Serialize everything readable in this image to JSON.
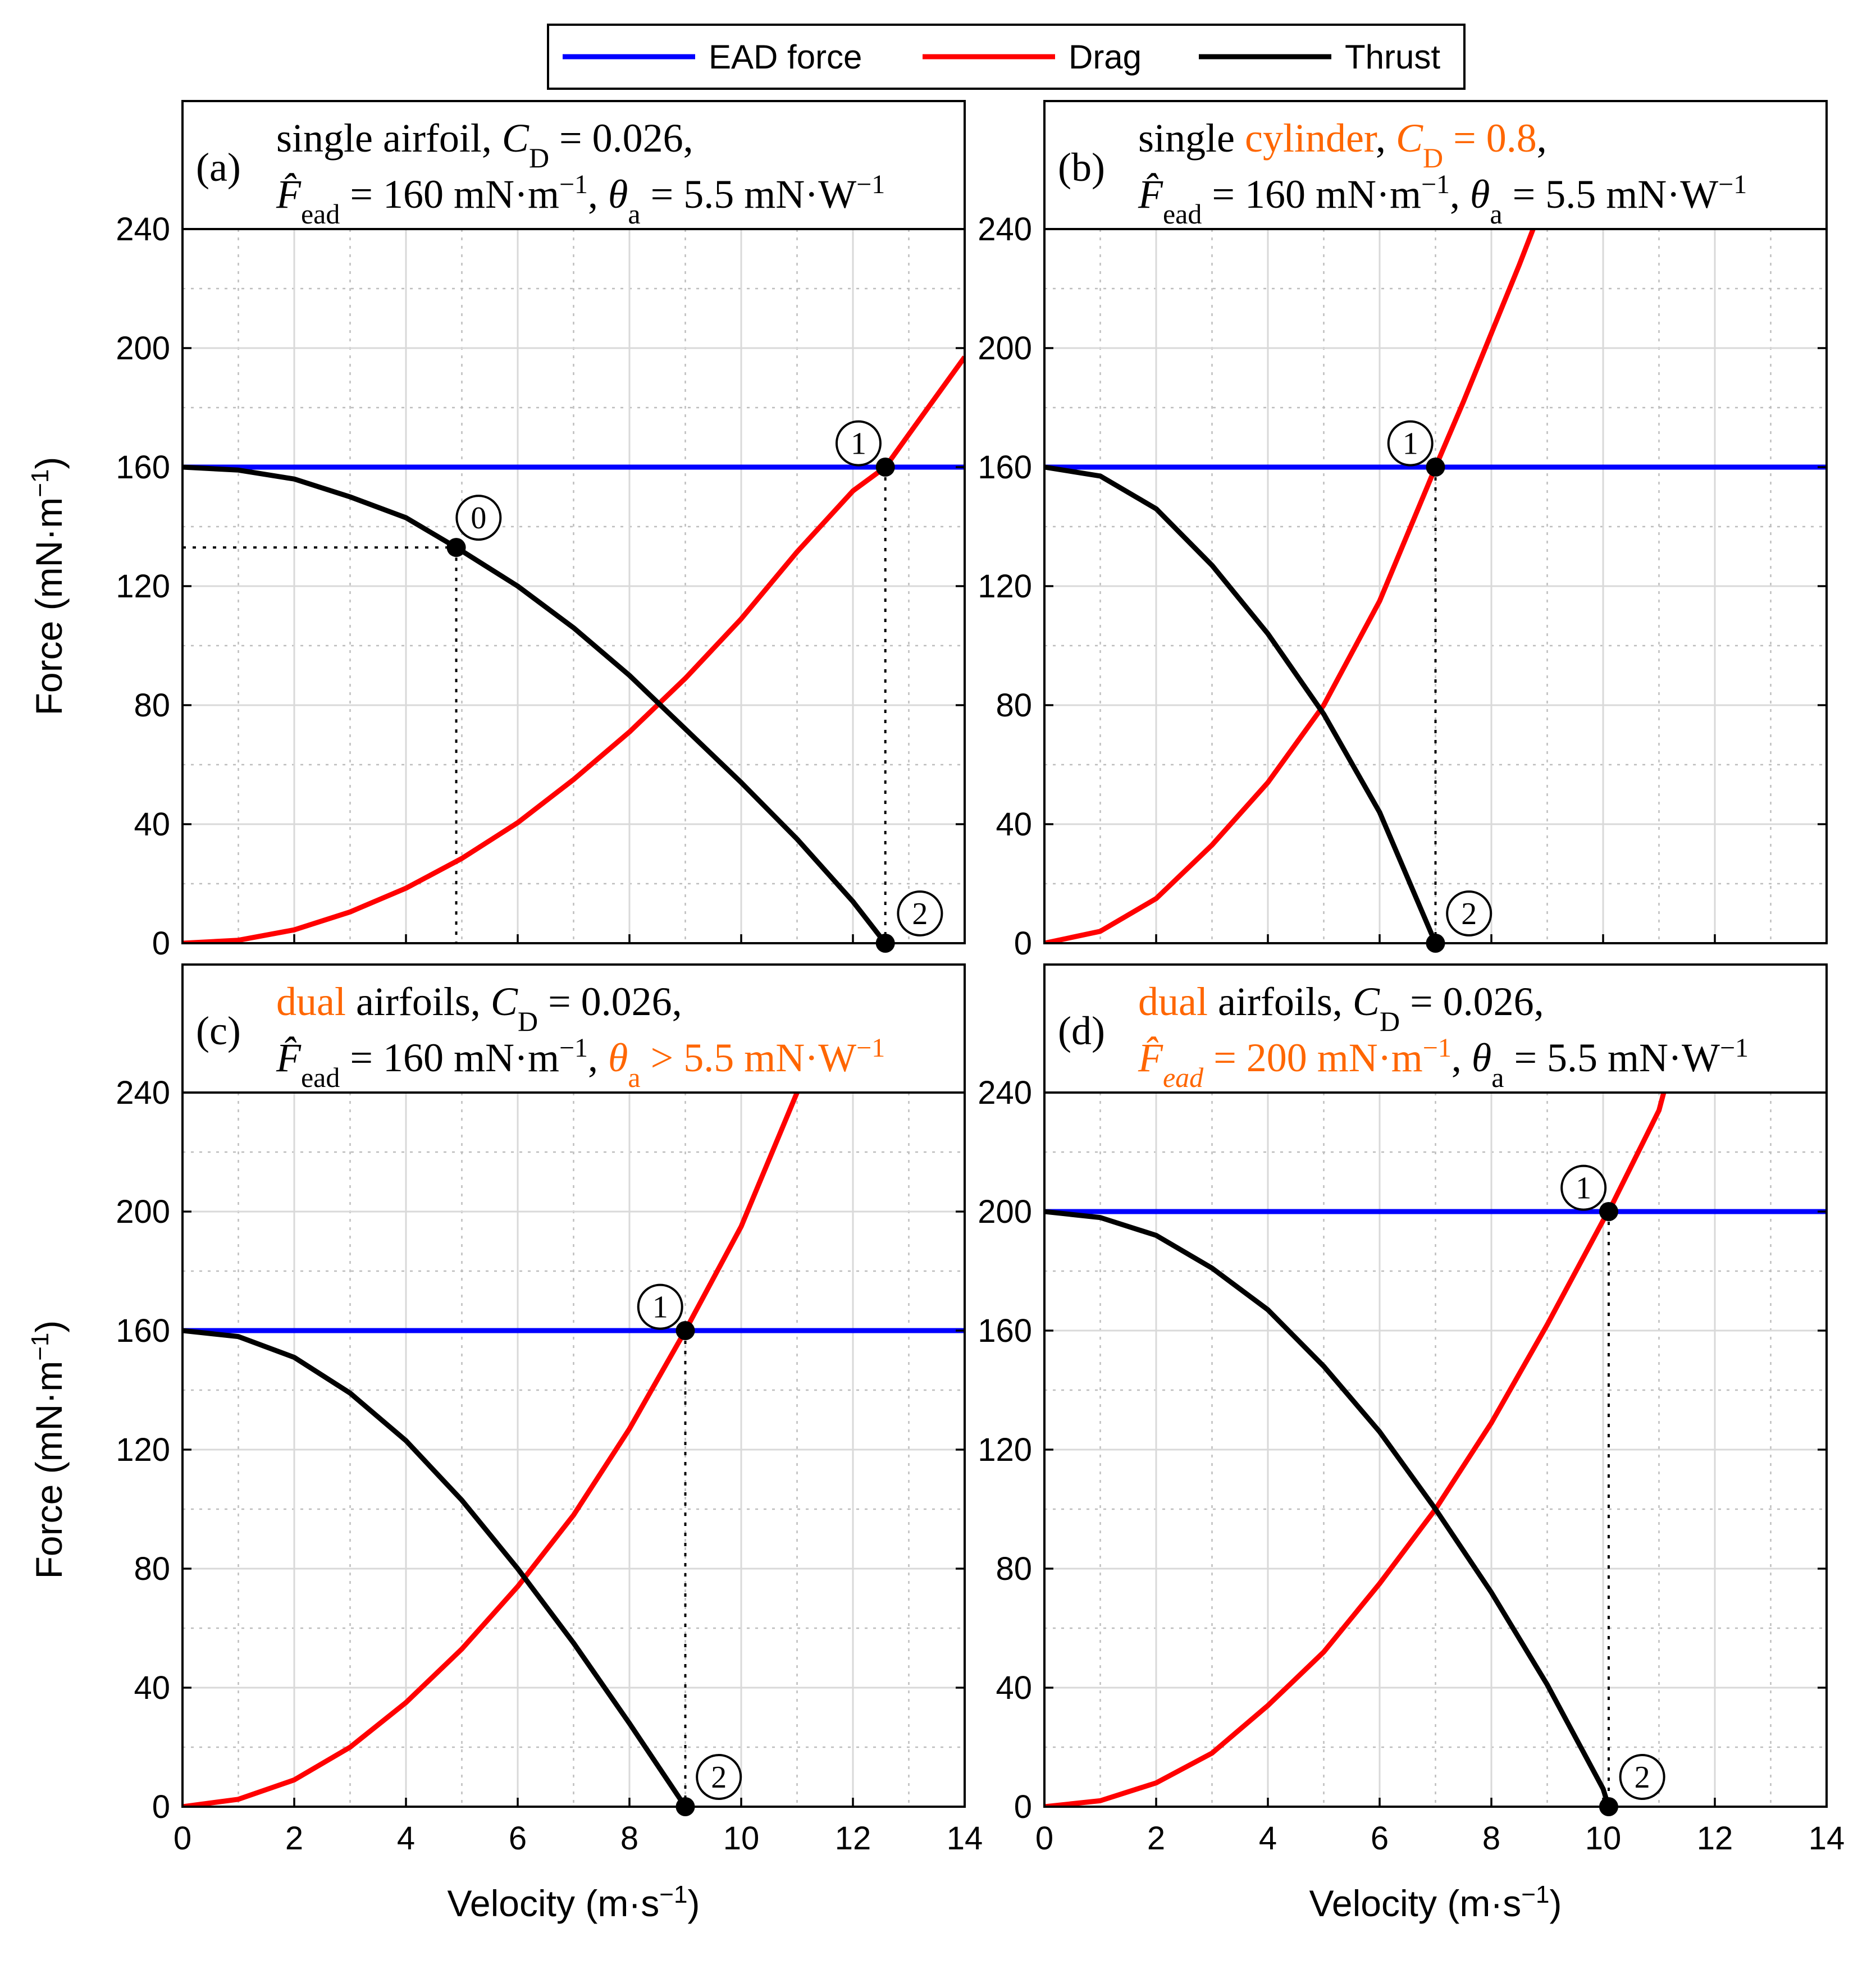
{
  "colors": {
    "ead": "#0000ff",
    "drag": "#ff0000",
    "thrust": "#000000",
    "highlight": "#ff6600"
  },
  "legend": [
    {
      "key": "ead",
      "label": "EAD force"
    },
    {
      "key": "drag",
      "label": "Drag"
    },
    {
      "key": "thrust",
      "label": "Thrust"
    }
  ],
  "axis_labels": {
    "x": {
      "main": "Velocity (m·s",
      "sup": "−1",
      "tail": ")"
    },
    "y": {
      "main": "Force (mN·m",
      "sup": "−1",
      "tail": ")"
    }
  },
  "chart_data": [
    {
      "id": "a",
      "type": "line",
      "panel_label": "(a)",
      "title_lines": [
        [
          {
            "t": "single airfoil, "
          },
          {
            "t": "C",
            "i": 1
          },
          {
            "t": "D",
            "sub": 1
          },
          {
            "t": " = 0.026,"
          }
        ],
        [
          {
            "t": "F̂",
            "i": 1
          },
          {
            "t": "ead",
            "sub": 1
          },
          {
            "t": " = 160 mN·m"
          },
          {
            "t": "−1",
            "sup": 1
          },
          {
            "t": ", "
          },
          {
            "t": "θ",
            "i": 1
          },
          {
            "t": "a",
            "sub": 1
          },
          {
            "t": " = 5.5 mN·W"
          },
          {
            "t": "−1",
            "sup": 1
          }
        ]
      ],
      "xlim": [
        0,
        14
      ],
      "ylim": [
        0,
        240
      ],
      "xticks": [
        0,
        2,
        4,
        6,
        8,
        10,
        12,
        14
      ],
      "yticks": [
        0,
        40,
        80,
        120,
        160,
        200,
        240
      ],
      "ead_force": 160,
      "drag": {
        "x": [
          0,
          1,
          2,
          3,
          4,
          5,
          6,
          7,
          8,
          9,
          10,
          11,
          12,
          12.58,
          13,
          14
        ],
        "y": [
          0,
          1,
          4.5,
          10.5,
          18.5,
          28.5,
          40.5,
          55,
          71,
          89,
          109,
          131.5,
          152,
          160,
          171,
          197
        ]
      },
      "thrust": {
        "x": [
          0,
          1,
          2,
          3,
          4,
          4.9,
          6,
          7,
          8,
          9,
          10,
          11,
          12,
          12.58
        ],
        "y": [
          160,
          159,
          156,
          150,
          143,
          133,
          120,
          106,
          90,
          72,
          54,
          35,
          14,
          0
        ]
      },
      "points": [
        {
          "label": "0",
          "x": 4.9,
          "y": 133,
          "vguide": 1,
          "hguide": 1,
          "lx": 5.3,
          "ly": 143
        },
        {
          "label": "1",
          "x": 12.58,
          "y": 160,
          "vguide": 1,
          "lx": 12.1,
          "ly": 168
        },
        {
          "label": "2",
          "x": 12.58,
          "y": 0,
          "lx": 13.2,
          "ly": 10
        }
      ]
    },
    {
      "id": "b",
      "type": "line",
      "panel_label": "(b)",
      "title_lines": [
        [
          {
            "t": "single "
          },
          {
            "t": "cylinder",
            "c": 1
          },
          {
            "t": ", "
          },
          {
            "t": "C",
            "i": 1,
            "c": 1
          },
          {
            "t": "D",
            "sub": 1,
            "c": 1
          },
          {
            "t": " = 0.8",
            "c": 1
          },
          {
            "t": ","
          }
        ],
        [
          {
            "t": "F̂",
            "i": 1
          },
          {
            "t": "ead",
            "sub": 1
          },
          {
            "t": " = 160 mN·m"
          },
          {
            "t": "−1",
            "sup": 1
          },
          {
            "t": ", "
          },
          {
            "t": "θ",
            "i": 1
          },
          {
            "t": "a",
            "sub": 1
          },
          {
            "t": " = 5.5 mN·W"
          },
          {
            "t": "−1",
            "sup": 1
          }
        ]
      ],
      "xlim": [
        0,
        14
      ],
      "ylim": [
        0,
        240
      ],
      "xticks": [
        0,
        2,
        4,
        6,
        8,
        10,
        12,
        14
      ],
      "yticks": [
        0,
        40,
        80,
        120,
        160,
        200,
        240
      ],
      "ead_force": 160,
      "drag": {
        "x": [
          0,
          1,
          2,
          3,
          4,
          5,
          6,
          7,
          7.5,
          8,
          8.5,
          8.85
        ],
        "y": [
          0,
          4,
          15,
          33,
          54,
          80,
          115,
          160,
          182,
          205,
          228,
          245
        ]
      },
      "thrust": {
        "x": [
          0,
          1,
          2,
          3,
          4,
          5,
          6,
          7
        ],
        "y": [
          160,
          157,
          146,
          127,
          104,
          77,
          44,
          0
        ]
      },
      "points": [
        {
          "label": "1",
          "x": 7.0,
          "y": 160,
          "vguide": 1,
          "lx": 6.55,
          "ly": 168
        },
        {
          "label": "2",
          "x": 7.0,
          "y": 0,
          "lx": 7.6,
          "ly": 10
        }
      ]
    },
    {
      "id": "c",
      "type": "line",
      "panel_label": "(c)",
      "title_lines": [
        [
          {
            "t": "dual",
            "c": 1
          },
          {
            "t": " airfoils, "
          },
          {
            "t": "C",
            "i": 1
          },
          {
            "t": "D",
            "sub": 1
          },
          {
            "t": " = 0.026,"
          }
        ],
        [
          {
            "t": "F̂",
            "i": 1
          },
          {
            "t": "ead",
            "sub": 1
          },
          {
            "t": " = 160 mN·m"
          },
          {
            "t": "−1",
            "sup": 1
          },
          {
            "t": ", "
          },
          {
            "t": "θ",
            "i": 1,
            "c": 1
          },
          {
            "t": "a",
            "sub": 1,
            "c": 1
          },
          {
            "t": " > 5.5 mN·W",
            "c": 1
          },
          {
            "t": "−1",
            "sup": 1,
            "c": 1
          }
        ]
      ],
      "xlim": [
        0,
        14
      ],
      "ylim": [
        0,
        240
      ],
      "xticks": [
        0,
        2,
        4,
        6,
        8,
        10,
        12,
        14
      ],
      "yticks": [
        0,
        40,
        80,
        120,
        160,
        200,
        240
      ],
      "ead_force": 160,
      "drag": {
        "x": [
          0,
          1,
          2,
          3,
          4,
          5,
          6,
          7,
          8,
          9,
          10,
          11,
          11.05
        ],
        "y": [
          0,
          2.5,
          9,
          20,
          35,
          53,
          74,
          98,
          127,
          160,
          195,
          240,
          243
        ]
      },
      "thrust": {
        "x": [
          0,
          1,
          2,
          3,
          4,
          5,
          6,
          7,
          8,
          9
        ],
        "y": [
          160,
          158,
          151,
          139,
          123,
          103,
          80,
          55,
          28,
          0
        ]
      },
      "points": [
        {
          "label": "1",
          "x": 9.0,
          "y": 160,
          "vguide": 1,
          "lx": 8.55,
          "ly": 168
        },
        {
          "label": "2",
          "x": 9.0,
          "y": 0,
          "lx": 9.6,
          "ly": 10
        }
      ]
    },
    {
      "id": "d",
      "type": "line",
      "panel_label": "(d)",
      "title_lines": [
        [
          {
            "t": "dual",
            "c": 1
          },
          {
            "t": " airfoils, "
          },
          {
            "t": "C",
            "i": 1
          },
          {
            "t": "D",
            "sub": 1
          },
          {
            "t": " = 0.026,"
          }
        ],
        [
          {
            "t": "F̂",
            "i": 1,
            "c": 1
          },
          {
            "t": "ead",
            "sub": 1,
            "i": 1,
            "c": 1
          },
          {
            "t": " = 200 mN·m",
            "c": 1
          },
          {
            "t": "−1",
            "sup": 1,
            "c": 1
          },
          {
            "t": ", "
          },
          {
            "t": "θ",
            "i": 1
          },
          {
            "t": "a",
            "sub": 1
          },
          {
            "t": " = 5.5 mN·W"
          },
          {
            "t": "−1",
            "sup": 1
          }
        ]
      ],
      "xlim": [
        0,
        14
      ],
      "ylim": [
        0,
        240
      ],
      "xticks": [
        0,
        2,
        4,
        6,
        8,
        10,
        12,
        14
      ],
      "yticks": [
        0,
        40,
        80,
        120,
        160,
        200,
        240
      ],
      "ead_force": 200,
      "drag": {
        "x": [
          0,
          1,
          2,
          3,
          4,
          5,
          6,
          7,
          8,
          9,
          10,
          10.1,
          11,
          11.1
        ],
        "y": [
          0,
          2,
          8,
          18,
          34,
          52,
          75,
          100,
          129,
          162,
          197,
          200,
          234,
          241
        ]
      },
      "thrust": {
        "x": [
          0,
          1,
          2,
          3,
          4,
          5,
          6,
          7,
          8,
          9,
          10,
          10.1
        ],
        "y": [
          200,
          198,
          192,
          181,
          167,
          148,
          126,
          100,
          72,
          41,
          6,
          0
        ]
      },
      "points": [
        {
          "label": "1",
          "x": 10.1,
          "y": 200,
          "vguide": 1,
          "lx": 9.65,
          "ly": 208
        },
        {
          "label": "2",
          "x": 10.1,
          "y": 0,
          "lx": 10.7,
          "ly": 10
        }
      ]
    }
  ]
}
